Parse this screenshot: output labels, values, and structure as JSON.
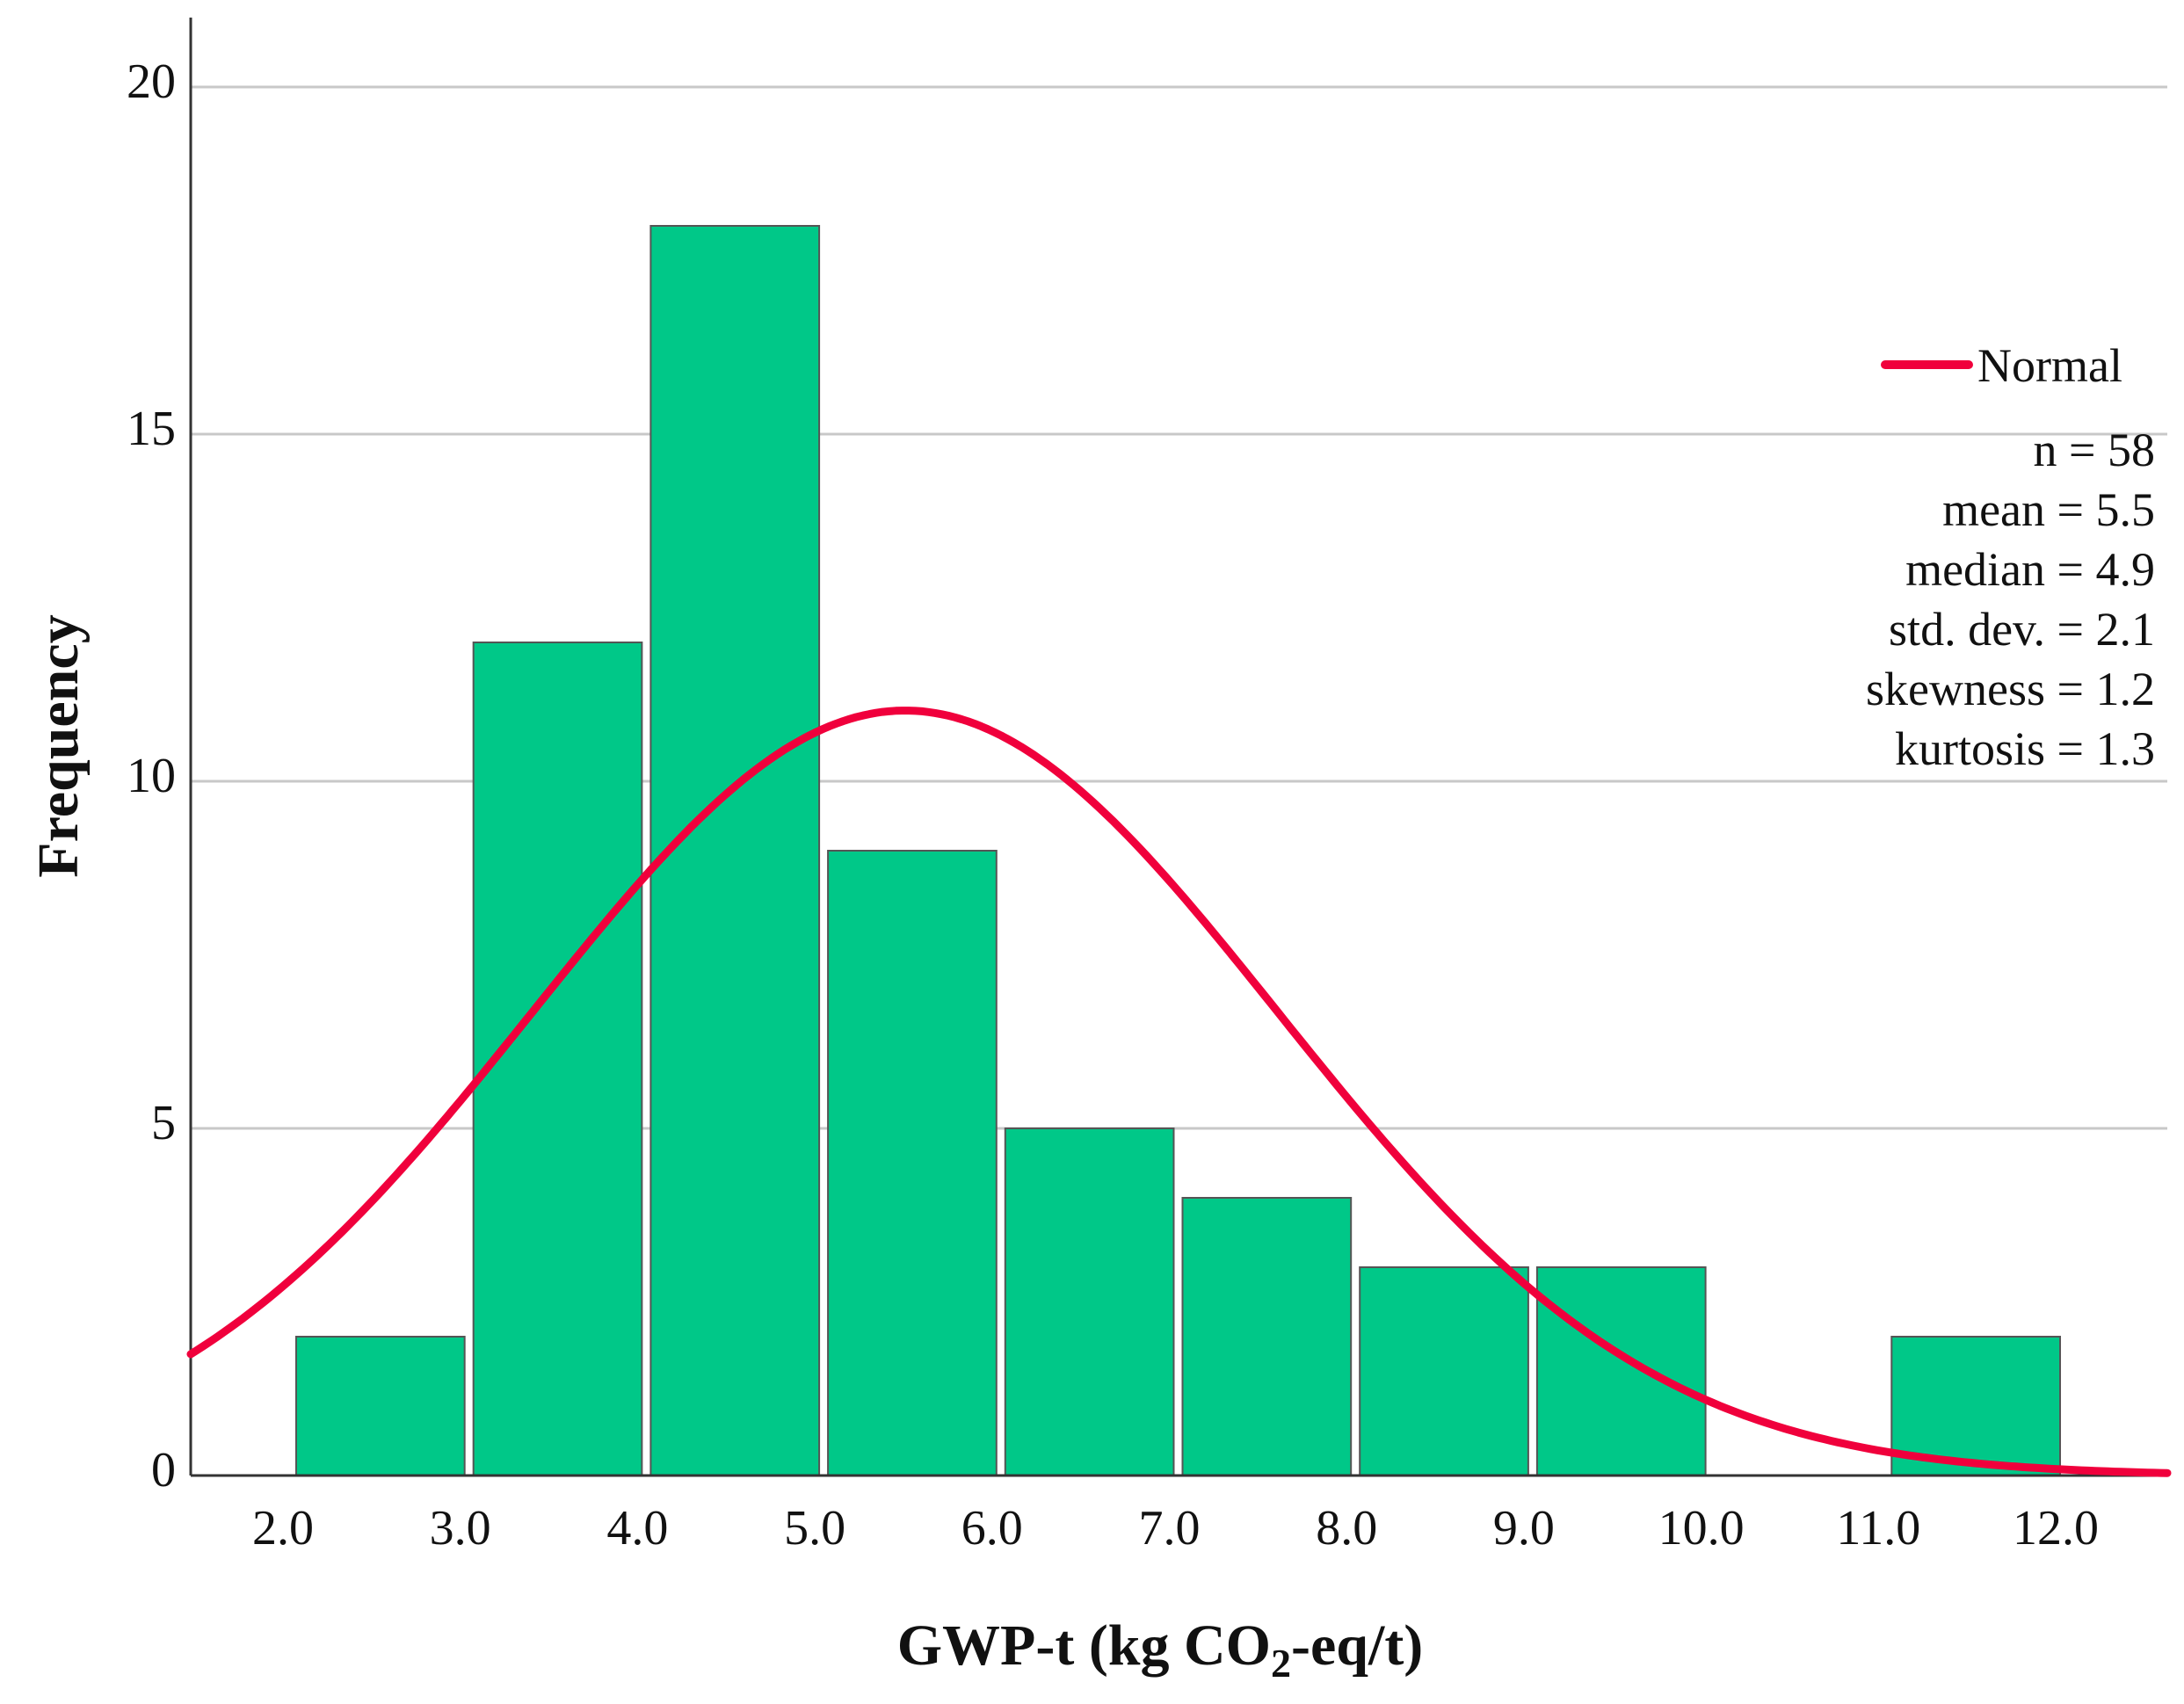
{
  "chart_data": {
    "type": "bar",
    "subtype": "histogram",
    "bin_edges": [
      2.0,
      3.0,
      4.0,
      5.0,
      6.0,
      7.0,
      8.0,
      9.0,
      10.0,
      11.0,
      12.0
    ],
    "x_tick_labels": [
      "2.0",
      "3.0",
      "4.0",
      "5.0",
      "6.0",
      "7.0",
      "8.0",
      "9.0",
      "10.0",
      "11.0",
      "12.0"
    ],
    "bins": [
      {
        "from": 2.0,
        "to": 3.0,
        "count": 2
      },
      {
        "from": 3.0,
        "to": 4.0,
        "count": 12
      },
      {
        "from": 4.0,
        "to": 5.0,
        "count": 18
      },
      {
        "from": 5.0,
        "to": 6.0,
        "count": 9
      },
      {
        "from": 6.0,
        "to": 7.0,
        "count": 5
      },
      {
        "from": 7.0,
        "to": 8.0,
        "count": 4
      },
      {
        "from": 8.0,
        "to": 9.0,
        "count": 3
      },
      {
        "from": 9.0,
        "to": 10.0,
        "count": 3
      },
      {
        "from": 11.0,
        "to": 12.0,
        "count": 2
      }
    ],
    "xlim": [
      1.43,
      12.58
    ],
    "ylim": [
      0,
      21
    ],
    "y_ticks": [
      0,
      5,
      10,
      15,
      20
    ],
    "y_tick_labels": [
      "0",
      "5",
      "10",
      "15",
      "20"
    ],
    "title": "",
    "xlabel_main": "GWP-t (kg CO",
    "xlabel_sub": "2",
    "xlabel_tail": "-eq/t)",
    "ylabel": "Frequency",
    "grid": "horizontal",
    "normal_curve": {
      "label": "Normal",
      "mean": 5.46,
      "std": 2.1,
      "bin_width": 1.0
    },
    "legend_position": "right",
    "stats": [
      {
        "label": "n",
        "value": "58"
      },
      {
        "label": "mean",
        "value": "5.5"
      },
      {
        "label": "median",
        "value": "4.9"
      },
      {
        "label": "std. dev.",
        "value": "2.1"
      },
      {
        "label": "skewness",
        "value": "1.2"
      },
      {
        "label": "kurtosis",
        "value": "1.3"
      }
    ],
    "colors": {
      "bar": "#00c888",
      "curve": "#f0003c",
      "grid": "#c8c8c8"
    }
  }
}
